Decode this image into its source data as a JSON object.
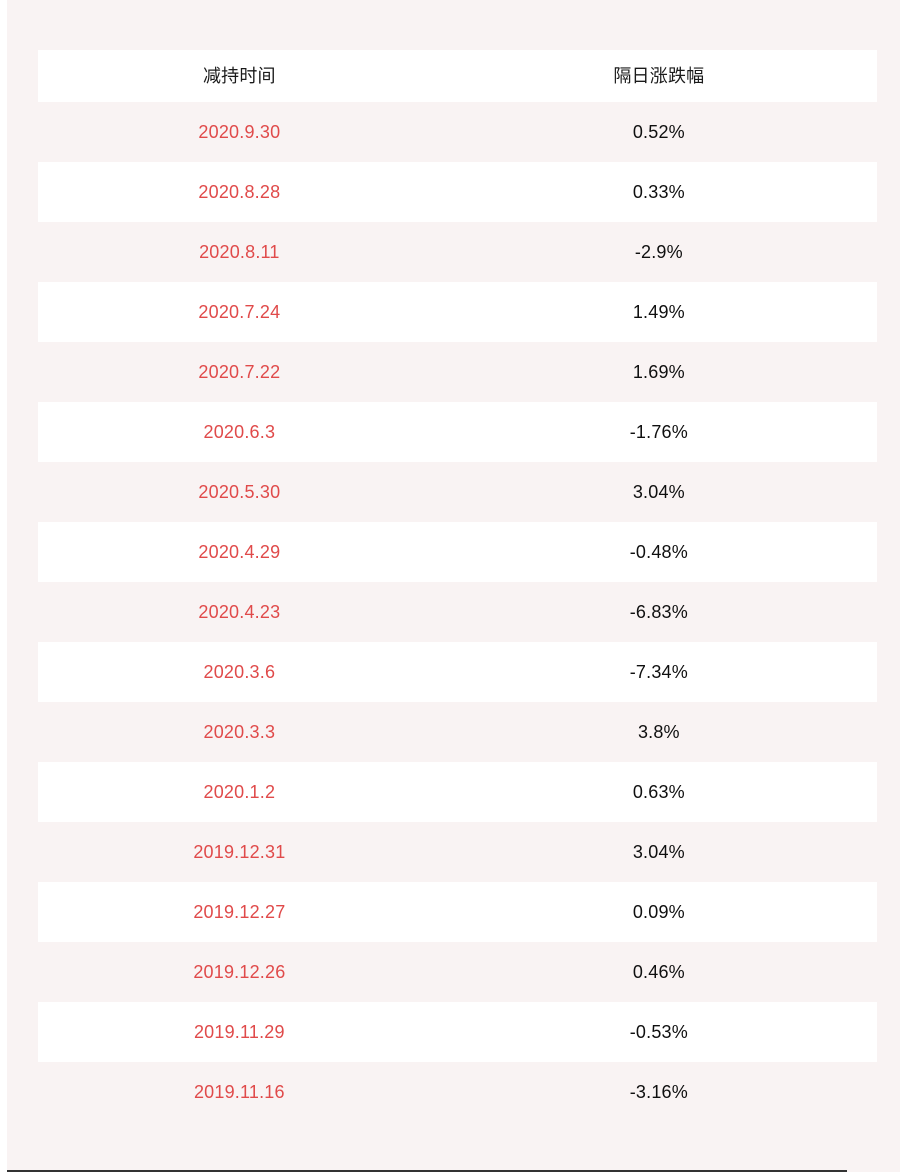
{
  "colors": {
    "page_background": "#f9f3f3",
    "row_alt_background": "#ffffff",
    "date_text": "#e04a4a",
    "value_text": "#0f0f0f",
    "header_text": "#1a1a1a",
    "bottom_edge_line": "#333333"
  },
  "chart_data": {
    "type": "table",
    "title": "",
    "columns": [
      "减持时间",
      "隔日涨跌幅"
    ],
    "rows": [
      [
        "2020.9.30",
        "0.52%"
      ],
      [
        "2020.8.28",
        "0.33%"
      ],
      [
        "2020.8.11",
        "-2.9%"
      ],
      [
        "2020.7.24",
        "1.49%"
      ],
      [
        "2020.7.22",
        "1.69%"
      ],
      [
        "2020.6.3",
        "-1.76%"
      ],
      [
        "2020.5.30",
        "3.04%"
      ],
      [
        "2020.4.29",
        "-0.48%"
      ],
      [
        "2020.4.23",
        "-6.83%"
      ],
      [
        "2020.3.6",
        "-7.34%"
      ],
      [
        "2020.3.3",
        "3.8%"
      ],
      [
        "2020.1.2",
        "0.63%"
      ],
      [
        "2019.12.31",
        "3.04%"
      ],
      [
        "2019.12.27",
        "0.09%"
      ],
      [
        "2019.12.26",
        "0.46%"
      ],
      [
        "2019.11.29",
        "-0.53%"
      ],
      [
        "2019.11.16",
        "-3.16%"
      ]
    ],
    "layout": {
      "grid": false,
      "zebra_striping": true,
      "column_alignment": [
        "center",
        "center"
      ]
    }
  }
}
